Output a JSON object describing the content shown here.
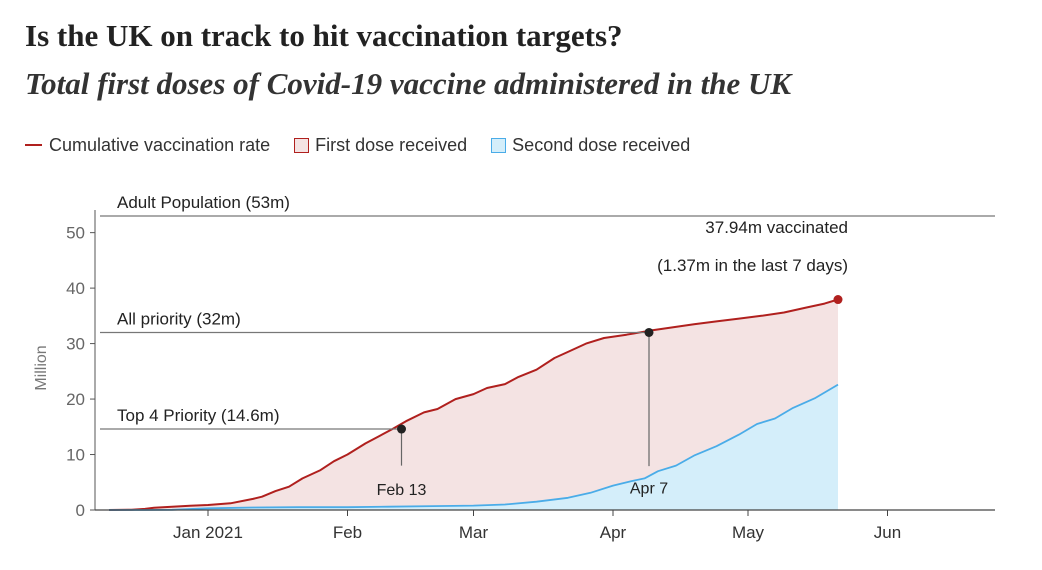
{
  "header": {
    "title": "Is the UK on track to hit vaccination targets?",
    "subtitle": "Total first doses of Covid-19 vaccine administered in the UK"
  },
  "legend": {
    "line": "Cumulative vaccination rate",
    "first": "First dose received",
    "second": "Second dose received"
  },
  "colors": {
    "line": "#b0201e",
    "first_fill": "#f4e3e3",
    "second_line": "#4aace8",
    "second_fill": "#d4eefa",
    "reference": "#777777",
    "marker": "#222222"
  },
  "chart_data": {
    "type": "area",
    "ylabel": "Million",
    "ylim": [
      0,
      53
    ],
    "yticks": [
      0,
      10,
      20,
      30,
      40,
      50
    ],
    "x_domain_days": [
      -22,
      175
    ],
    "x_ticks": [
      {
        "label": "Jan 2021",
        "day": 0
      },
      {
        "label": "Feb",
        "day": 31
      },
      {
        "label": "Mar",
        "day": 59
      },
      {
        "label": "Apr",
        "day": 90
      },
      {
        "label": "May",
        "day": 120
      },
      {
        "label": "Jun",
        "day": 151
      }
    ],
    "series": [
      {
        "name": "First dose received",
        "points": [
          [
            -22,
            0
          ],
          [
            -17,
            0.05
          ],
          [
            -14,
            0.2
          ],
          [
            -12,
            0.4
          ],
          [
            -8,
            0.6
          ],
          [
            -4,
            0.75
          ],
          [
            0,
            0.9
          ],
          [
            5,
            1.2
          ],
          [
            10,
            2.0
          ],
          [
            12,
            2.4
          ],
          [
            15,
            3.4
          ],
          [
            18,
            4.2
          ],
          [
            21,
            5.7
          ],
          [
            25,
            7.2
          ],
          [
            28,
            8.8
          ],
          [
            31,
            10.0
          ],
          [
            35,
            12.0
          ],
          [
            38,
            13.3
          ],
          [
            41,
            14.6
          ],
          [
            44,
            16.0
          ],
          [
            48,
            17.6
          ],
          [
            51,
            18.2
          ],
          [
            55,
            20.0
          ],
          [
            59,
            20.9
          ],
          [
            62,
            22.0
          ],
          [
            66,
            22.7
          ],
          [
            69,
            24.0
          ],
          [
            73,
            25.3
          ],
          [
            77,
            27.4
          ],
          [
            80,
            28.5
          ],
          [
            84,
            30.0
          ],
          [
            88,
            31.0
          ],
          [
            93,
            31.6
          ],
          [
            98,
            32.3
          ],
          [
            103,
            32.9
          ],
          [
            108,
            33.5
          ],
          [
            113,
            34.0
          ],
          [
            118,
            34.5
          ],
          [
            123,
            35.0
          ],
          [
            128,
            35.6
          ],
          [
            133,
            36.5
          ],
          [
            137,
            37.2
          ],
          [
            140,
            37.94
          ]
        ]
      },
      {
        "name": "Second dose received",
        "points": [
          [
            -22,
            0
          ],
          [
            -14,
            0
          ],
          [
            -8,
            0.03
          ],
          [
            0,
            0.3
          ],
          [
            10,
            0.45
          ],
          [
            20,
            0.5
          ],
          [
            31,
            0.5
          ],
          [
            40,
            0.6
          ],
          [
            50,
            0.7
          ],
          [
            59,
            0.8
          ],
          [
            66,
            1.0
          ],
          [
            73,
            1.5
          ],
          [
            80,
            2.2
          ],
          [
            85,
            3.1
          ],
          [
            90,
            4.4
          ],
          [
            94,
            5.2
          ],
          [
            97,
            5.7
          ],
          [
            100,
            7.0
          ],
          [
            104,
            8.0
          ],
          [
            108,
            9.8
          ],
          [
            113,
            11.5
          ],
          [
            118,
            13.6
          ],
          [
            122,
            15.5
          ],
          [
            126,
            16.5
          ],
          [
            130,
            18.4
          ],
          [
            135,
            20.2
          ],
          [
            140,
            22.6
          ]
        ]
      }
    ],
    "reference_lines": [
      {
        "label": "Adult Population (53m)",
        "value": 53
      },
      {
        "label": "All priority (32m)",
        "value": 32
      },
      {
        "label": "Top 4 Priority (14.6m)",
        "value": 14.6
      }
    ],
    "milestones": [
      {
        "label": "Feb 13",
        "day": 43,
        "value": 14.6
      },
      {
        "label": "Apr 7",
        "day": 98,
        "value": 32
      }
    ],
    "annotation": {
      "line1": "37.94m vaccinated",
      "line2": "(1.37m in the last 7 days)",
      "value": 37.94
    }
  }
}
